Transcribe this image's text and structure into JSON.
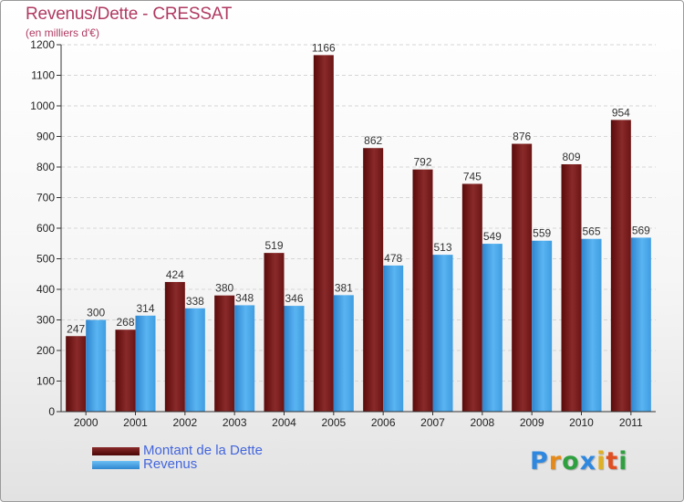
{
  "chart_data": {
    "type": "bar",
    "title": "Revenus/Dette - CRESSAT",
    "subtitle": "(en milliers d'€)",
    "xlabel": "",
    "ylabel": "",
    "ylim": [
      0,
      1200
    ],
    "yticks": [
      0,
      100,
      200,
      300,
      400,
      500,
      600,
      700,
      800,
      900,
      1000,
      1100,
      1200
    ],
    "grid": "y",
    "categories": [
      "2000",
      "2001",
      "2002",
      "2003",
      "2004",
      "2005",
      "2006",
      "2007",
      "2008",
      "2009",
      "2010",
      "2011"
    ],
    "series": [
      {
        "name": "Montant de la Dette",
        "color": "#7b1e1e",
        "values": [
          247,
          268,
          424,
          380,
          519,
          1166,
          862,
          792,
          745,
          876,
          809,
          954
        ]
      },
      {
        "name": "Revenus",
        "color": "#4ba8ea",
        "values": [
          300,
          314,
          338,
          348,
          346,
          381,
          478,
          513,
          549,
          559,
          565,
          569
        ]
      }
    ],
    "legend_position": "bottom-left"
  },
  "logo": {
    "letters": [
      "P",
      "r",
      "o",
      "x",
      "i",
      "t",
      "i"
    ],
    "colors": [
      "#2f88e0",
      "#e58a1a",
      "#2fa040",
      "#2f88e0",
      "#e0b020",
      "#e05020",
      "#2fa040"
    ]
  }
}
